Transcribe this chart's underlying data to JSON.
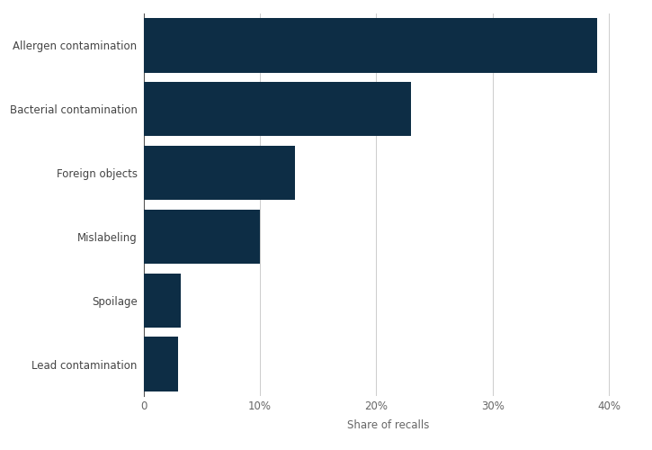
{
  "categories": [
    "Lead contamination",
    "Spoilage",
    "Mislabeling",
    "Foreign objects",
    "Bacterial contamination",
    "Allergen contamination"
  ],
  "values": [
    3.0,
    3.2,
    10.0,
    13.0,
    23.0,
    39.0
  ],
  "bar_color": "#0d2d45",
  "xlabel": "Share of recalls",
  "xlim": [
    0,
    42
  ],
  "xticks": [
    0,
    10,
    20,
    30,
    40
  ],
  "xtick_labels": [
    "0",
    "10%",
    "20%",
    "30%",
    "40%"
  ],
  "background_color": "#ffffff",
  "bar_height": 0.85,
  "label_fontsize": 8.5,
  "xlabel_fontsize": 8.5,
  "tick_fontsize": 8.5,
  "grid_color": "#cccccc",
  "spine_color": "#aaaaaa"
}
